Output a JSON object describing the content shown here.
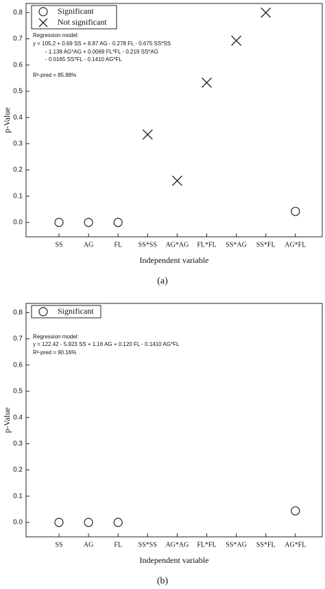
{
  "chart_data": [
    {
      "type": "scatter",
      "caption": "(a)",
      "x_label": "Independent variable",
      "y_label": "p-Value",
      "categories": [
        "SS",
        "AG",
        "FL",
        "SS*SS",
        "AG*AG",
        "FL*FL",
        "SS*AG",
        "SS*FL",
        "AG*FL"
      ],
      "series": [
        {
          "name": "Significant",
          "marker": "circle",
          "color": "#222222",
          "values": [
            0,
            0,
            0,
            null,
            null,
            null,
            null,
            null,
            0.042
          ]
        },
        {
          "name": "Not significant",
          "marker": "x",
          "color": "#222222",
          "values": [
            null,
            null,
            null,
            0.335,
            0.159,
            0.533,
            0.693,
            0.8,
            null
          ]
        }
      ],
      "ylim": [
        -0.055,
        0.835
      ],
      "yticks": [
        {
          "value": 0,
          "label": "0.0"
        },
        0.1,
        0.2,
        0.3,
        0.4,
        0.5,
        0.6,
        0.7,
        0.8
      ],
      "annotation": [
        "Regression model:",
        "y = 105.2 + 0.69 SS + 8.87 AG - 0.278 FL - 0.675 SS*SS",
        "- 1.138 AG*AG + 0.0069 FL*FL - 0.219 SS*AG",
        "- 0.0165 SS*FL - 0.1410 AG*FL",
        "R²-pred = 85.88%"
      ]
    },
    {
      "type": "scatter",
      "caption": "(b)",
      "x_label": "Independent variable",
      "y_label": "p-Value",
      "categories": [
        "SS",
        "AG",
        "FL",
        "SS*SS",
        "AG*AG",
        "FL*FL",
        "SS*AG",
        "SS*FL",
        "AG*FL"
      ],
      "series": [
        {
          "name": "Significant",
          "marker": "circle",
          "color": "#222222",
          "values": [
            0,
            0,
            0,
            null,
            null,
            null,
            null,
            null,
            0.044
          ]
        }
      ],
      "ylim": [
        -0.055,
        0.835
      ],
      "yticks": [
        {
          "value": 0,
          "label": "0.0"
        },
        0.1,
        0.2,
        0.3,
        0.4,
        0.5,
        0.6,
        0.7,
        0.8
      ],
      "annotation": [
        "Regression model:",
        "y = 122.42 - 5.923 SS + 1.16 AG + 0.120 FL - 0.1410 AG*FL",
        "R²-pred = 90.16%"
      ]
    }
  ]
}
